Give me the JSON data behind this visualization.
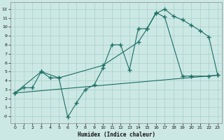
{
  "xlabel": "Humidex (Indice chaleur)",
  "background_color": "#cce8e4",
  "grid_color": "#aacfca",
  "line_color": "#1a6e65",
  "xlim": [
    -0.5,
    23.5
  ],
  "ylim": [
    -0.8,
    12.8
  ],
  "xticks": [
    0,
    1,
    2,
    3,
    4,
    5,
    6,
    7,
    8,
    9,
    10,
    11,
    12,
    13,
    14,
    15,
    16,
    17,
    18,
    19,
    20,
    21,
    22,
    23
  ],
  "yticks": [
    0,
    1,
    2,
    3,
    4,
    5,
    6,
    7,
    8,
    9,
    10,
    11,
    12
  ],
  "ytick_labels": [
    "-0",
    "1",
    "2",
    "3",
    "4",
    "5",
    "6",
    "7",
    "8",
    "9",
    "10",
    "11",
    "12"
  ],
  "line1_x": [
    0,
    1,
    2,
    3,
    4,
    5,
    6,
    7,
    8,
    9,
    10,
    11,
    12,
    13,
    14,
    15,
    16,
    17,
    18,
    19,
    20,
    21,
    22,
    23
  ],
  "line1_y": [
    2.6,
    3.2,
    3.2,
    5.0,
    4.3,
    4.3,
    -0.1,
    1.5,
    3.0,
    3.5,
    5.4,
    8.0,
    8.0,
    5.2,
    9.8,
    9.8,
    11.5,
    12.0,
    11.2,
    10.8,
    10.2,
    9.6,
    8.9,
    4.6
  ],
  "line2_x": [
    0,
    3,
    5,
    10,
    14,
    15,
    16,
    17,
    19,
    20,
    22,
    23
  ],
  "line2_y": [
    2.6,
    5.0,
    4.3,
    5.7,
    8.3,
    9.8,
    11.6,
    11.1,
    4.5,
    4.5,
    4.5,
    4.6
  ],
  "line3_x": [
    0,
    23
  ],
  "line3_y": [
    2.6,
    4.6
  ],
  "marker": "+",
  "marker_size": 4,
  "linewidth": 0.8
}
